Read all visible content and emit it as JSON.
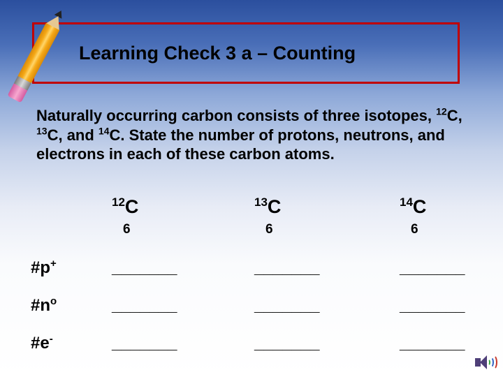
{
  "title": "Learning Check 3 a – Counting",
  "prompt_html": "Naturally occurring carbon consists of three isotopes, <sup>12</sup>C, <sup>13</sup>C, and <sup>14</sup>C.  State the number of protons, neutrons, and electrons in each of these carbon atoms.",
  "columns": [
    {
      "symbol_html": "<sup>12</sup>C",
      "sub": "6"
    },
    {
      "symbol_html": "<sup>13</sup>C",
      "sub": "6"
    },
    {
      "symbol_html": "<sup>14</sup>C",
      "sub": "6"
    }
  ],
  "rows": [
    {
      "label_html": "#p<sup>+</sup>"
    },
    {
      "label_html": "#n<sup>o</sup>"
    },
    {
      "label_html": "#e<sup>-</sup>"
    }
  ],
  "blank": "_______",
  "colors": {
    "title_border": "#c00000",
    "text": "#000000"
  }
}
